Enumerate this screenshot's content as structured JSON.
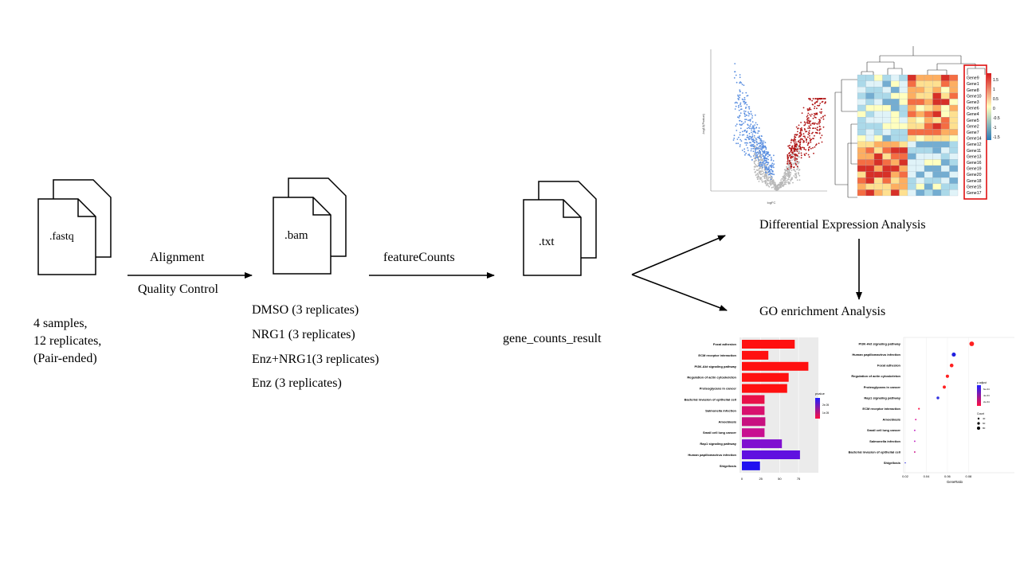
{
  "files": {
    "fastq": ".fastq",
    "bam": ".bam",
    "txt": ".txt"
  },
  "steps": {
    "alignment": "Alignment",
    "quality_control": "Quality  Control",
    "featurecounts": "featureCounts"
  },
  "samples": {
    "line1": "4 samples,",
    "line2": "12 replicates,",
    "line3": "(Pair-ended)"
  },
  "conditions": [
    "DMSO (3 replicates)",
    "NRG1 (3 replicates)",
    "Enz+NRG1(3 replicates)",
    "Enz (3 replicates)"
  ],
  "result_label": "gene_counts_result",
  "analyses": {
    "differential": "Differential  Expression Analysis",
    "go": "GO enrichment Analysis"
  },
  "volcano": {
    "xlabel": "logFC",
    "ylabel": "-log10(Pvalue)"
  },
  "heatmap": {
    "genes": [
      "Gene9",
      "Gene1",
      "Gene8",
      "Gene10",
      "Gene3",
      "Gene6",
      "Gene4",
      "Gene5",
      "Gene2",
      "Gene7",
      "Gene14",
      "Gene12",
      "Gene11",
      "Gene13",
      "Gene16",
      "Gene19",
      "Gene20",
      "Gene18",
      "Gene15",
      "Gene17"
    ],
    "scale": [
      "1.5",
      "1",
      "0.5",
      "0",
      "-0.5",
      "-1",
      "-1.5"
    ]
  },
  "chart_data": [
    {
      "type": "bar",
      "orientation": "horizontal",
      "categories": [
        "Focal adhesion",
        "ECM receptor interaction",
        "PI3K-Akt signaling pathway",
        "Regulation of actin cytoskeleton",
        "Proteoglycans in cancer",
        "Bacterial invasion of epithelial cell",
        "Salmonella infection",
        "Amoebiasis",
        "Small cell lung cancer",
        "Rap1 signaling pathway",
        "Human papillomavirus infection",
        "Shigellosis"
      ],
      "values": [
        70,
        35,
        88,
        62,
        60,
        30,
        30,
        31,
        30,
        53,
        77,
        24
      ],
      "pvalue_color": [
        "#ff1010",
        "#ff1010",
        "#ff1010",
        "#ff1010",
        "#ff1010",
        "#e8104a",
        "#d8106e",
        "#c81080",
        "#c81090",
        "#8010d0",
        "#6010e0",
        "#2010f0"
      ],
      "xticks": [
        "0",
        "25",
        "50",
        "75"
      ],
      "legend_title": "pvalue",
      "legend_ticks": [
        "2e-05",
        "1e-05"
      ]
    },
    {
      "type": "scatter",
      "categories": [
        "PI3K-Akt signaling pathway",
        "Human papillomavirus infection",
        "Focal adhesion",
        "Regulation of actin cytoskeleton",
        "Proteoglycans in cancer",
        "Rap1 signaling pathway",
        "ECM receptor interaction",
        "Amoebiasis",
        "Small cell lung cancer",
        "Salmonella infection",
        "Bacterial invasion of epithelial cell",
        "Shigellosis"
      ],
      "x": [
        0.083,
        0.066,
        0.064,
        0.06,
        0.057,
        0.051,
        0.033,
        0.03,
        0.029,
        0.029,
        0.029,
        0.02
      ],
      "count": [
        88,
        77,
        70,
        62,
        60,
        53,
        35,
        31,
        30,
        30,
        30,
        24
      ],
      "colors": [
        "#ff2020",
        "#2020e0",
        "#ff2020",
        "#ff2020",
        "#ff2020",
        "#3030e0",
        "#ff2050",
        "#e020a0",
        "#c020c0",
        "#c020c0",
        "#d02090",
        "#4040e0"
      ],
      "xlabel": "GeneRatio",
      "xticks": [
        "0.02",
        "0.04",
        "0.06",
        "0.08"
      ],
      "xlim": [
        0.02,
        0.085
      ],
      "legend_title": "p.adjust",
      "legend_ticks": [
        "6e-04",
        "4e-04",
        "2e-04"
      ],
      "count_title": "Count",
      "count_ticks": [
        "40",
        "60",
        "80"
      ]
    }
  ]
}
